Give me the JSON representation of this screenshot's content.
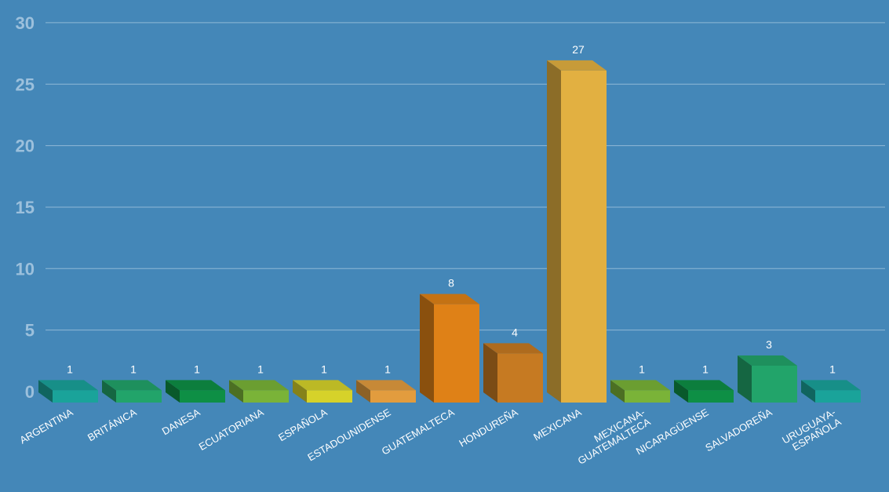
{
  "chart_data": {
    "type": "bar",
    "title": "",
    "xlabel": "",
    "ylabel": "",
    "ylim": [
      0,
      30
    ],
    "yticks": [
      0,
      5,
      10,
      15,
      20,
      25,
      30
    ],
    "grid": true,
    "categories": [
      "ARGENTINA",
      "BRITÁNICA",
      "DANESA",
      "ECUATORIANA",
      "ESPAÑOLA",
      "ESTADOUNIDENSE",
      "GUATEMALTECA",
      "HONDUREÑA",
      "MEXICANA",
      "MEXICANA-\nGUATEMALTECA",
      "NICARAGÜENSE",
      "SALVADOREÑA",
      "URUGUAYA-\nESPAÑOLA"
    ],
    "values": [
      1,
      1,
      1,
      1,
      1,
      1,
      8,
      4,
      27,
      1,
      1,
      3,
      1
    ],
    "colors": [
      "#1aa39a",
      "#22a46a",
      "#0e8f45",
      "#7ab338",
      "#d6d22a",
      "#e29c3e",
      "#df8117",
      "#c67a22",
      "#e2b041",
      "#7ab338",
      "#0e8f45",
      "#22a46a",
      "#1aa39a"
    ]
  }
}
